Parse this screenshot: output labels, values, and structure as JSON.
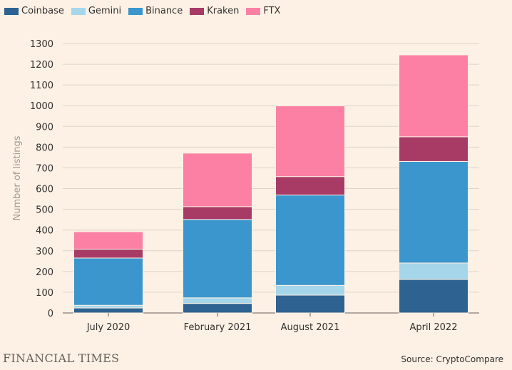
{
  "chart_data": {
    "type": "bar",
    "stacked": true,
    "categories": [
      "July 2020",
      "February 2021",
      "August 2021",
      "April 2022"
    ],
    "series": [
      {
        "name": "Coinbase",
        "color": "#2e6291",
        "values": [
          24,
          46,
          86,
          162
        ]
      },
      {
        "name": "Gemini",
        "color": "#a5d6ea",
        "values": [
          13,
          27,
          47,
          79
        ]
      },
      {
        "name": "Binance",
        "color": "#3a96cc",
        "values": [
          228,
          378,
          436,
          490
        ]
      },
      {
        "name": "Kraken",
        "color": "#a83a66",
        "values": [
          43,
          62,
          89,
          119
        ]
      },
      {
        "name": "FTX",
        "color": "#fb80a4",
        "values": [
          84,
          258,
          341,
          395
        ]
      }
    ],
    "ylabel": "Number of listings",
    "ylim": [
      0,
      1300
    ],
    "yticks": [
      0,
      100,
      200,
      300,
      400,
      500,
      600,
      700,
      800,
      900,
      1000,
      1100,
      1200,
      1300
    ],
    "grid": true,
    "legend": "top-left"
  },
  "footer": {
    "brand": "FINANCIAL TIMES",
    "source": "Source: CryptoCompare"
  }
}
